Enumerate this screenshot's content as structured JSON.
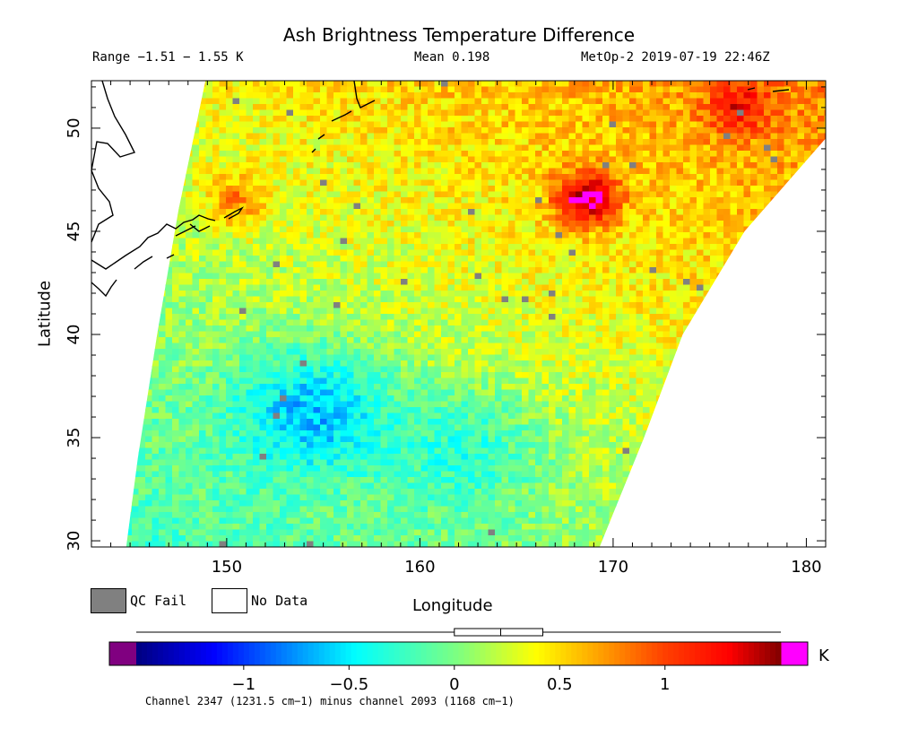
{
  "chart_data": {
    "type": "heatmap",
    "title": "Ash Brightness Temperature Difference",
    "range_text": "Range −1.51 − 1.55 K",
    "mean_text": "Mean 0.198",
    "source_text": "MetOp-2 2019-07-19 22:46Z",
    "xlabel": "Longitude",
    "ylabel": "Latitude",
    "xlim": [
      143,
      181
    ],
    "ylim": [
      29.7,
      52.3
    ],
    "x_ticks": [
      150,
      160,
      170,
      180
    ],
    "y_ticks": [
      30,
      35,
      40,
      45,
      50
    ],
    "colorbar": {
      "unit": "K",
      "vmin": -1.51,
      "vmax": 1.55,
      "ticks": [
        -1,
        -0.5,
        0,
        0.5,
        1
      ],
      "tick_labels": [
        "−1",
        "−0.5",
        "0",
        "0.5",
        "1"
      ],
      "below_color": "#800080",
      "above_color": "#ff00ff",
      "box_stats": {
        "whisker_low": -1.51,
        "q1": 0.0,
        "median": 0.22,
        "q3": 0.42,
        "whisker_high": 1.55
      }
    },
    "hotspots": [
      {
        "lon": 168.6,
        "lat": 46.6,
        "value": 1.5
      },
      {
        "lon": 176.5,
        "lat": 51.0,
        "value": 1.0
      },
      {
        "lon": 150.5,
        "lat": 46.5,
        "value": 0.9
      }
    ],
    "coolspots": [
      {
        "lon": 154.5,
        "lat": 36.3,
        "value": -0.6
      },
      {
        "lon": 162.5,
        "lat": 34.5,
        "value": -0.3
      }
    ],
    "legend": [
      {
        "label": "QC Fail",
        "color": "#808080"
      },
      {
        "label": "No Data",
        "color": "#ffffff"
      }
    ],
    "footnote": "Channel 2347 (1231.5 cm−1) minus channel 2093 (1168 cm−1)"
  }
}
